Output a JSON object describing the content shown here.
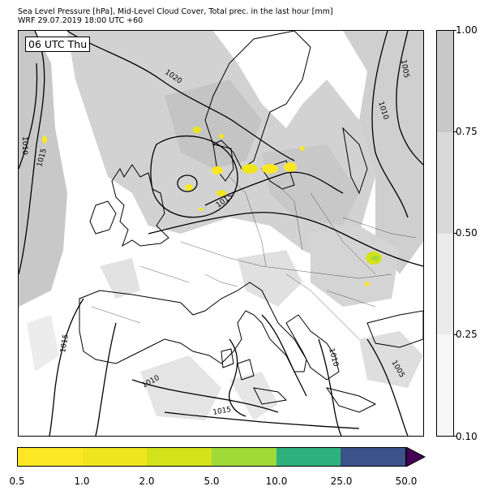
{
  "title_line1": "Sea Level Pressure [hPa], Mid-Level Cloud Cover, Total prec. in the last hour [mm]",
  "title_line2": "WRF 29.07.2019 18:00 UTC +60",
  "time_label": "06 UTC Thu",
  "contour_labels": [
    "1020",
    "1010",
    "1015",
    "1005",
    "1010",
    "1015",
    "1015",
    "1010",
    "1015",
    "1010",
    "1005"
  ],
  "cloud_colorbar": {
    "ticks": [
      "1.00",
      "0.75",
      "0.50",
      "0.25",
      "0.10"
    ],
    "levels": [
      0.1,
      0.25,
      0.5,
      0.75,
      1.0
    ],
    "colors": [
      "#f7f7f7",
      "#ebebeb",
      "#d9d9d9",
      "#c8c8c8"
    ]
  },
  "precip_colorbar": {
    "ticks": [
      "0.5",
      "1.0",
      "2.0",
      "5.0",
      "10.0",
      "25.0",
      "50.0"
    ],
    "colors": [
      "#fde725",
      "#efe51c",
      "#d2e21b",
      "#a0da39",
      "#2db27d",
      "#3b528b"
    ],
    "extend_color": "#440154"
  }
}
